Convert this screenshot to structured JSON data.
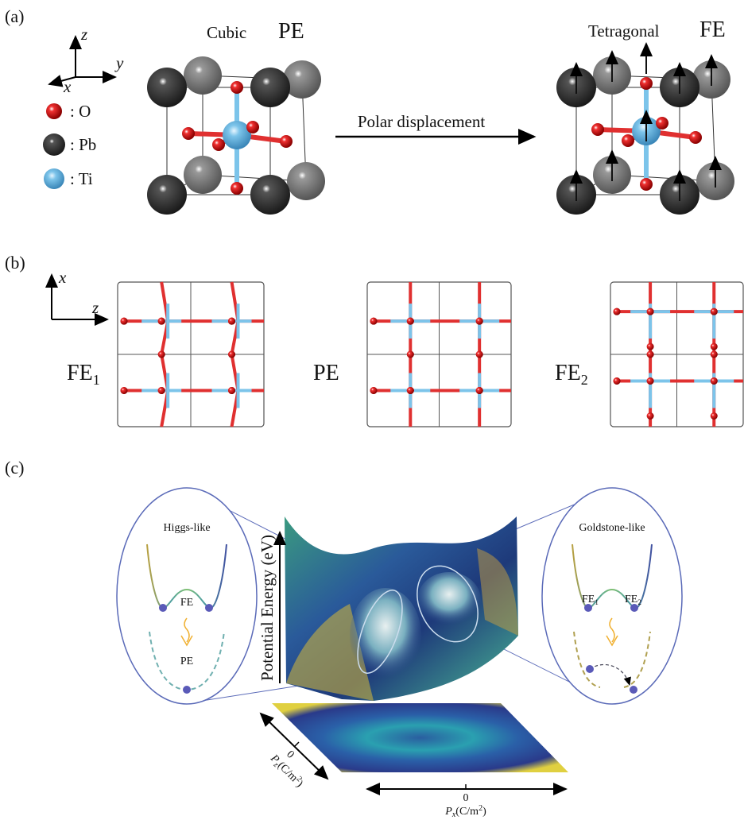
{
  "panel_a": {
    "label": "(a)",
    "axes": {
      "z": "z",
      "y": "y",
      "x": "x"
    },
    "legend": [
      ": O",
      ": Pb",
      ": Ti"
    ],
    "cubic": {
      "name": "Cubic",
      "phase": "PE"
    },
    "tetragonal": {
      "name": "Tetragonal",
      "phase": "FE"
    },
    "arrow_label": "Polar displacement"
  },
  "panel_b": {
    "label": "(b)",
    "axes": {
      "x": "x",
      "z": "z"
    },
    "structures": [
      {
        "name": "FE",
        "sub": "1"
      },
      {
        "name": "PE"
      },
      {
        "name": "FE",
        "sub": "2"
      }
    ]
  },
  "panel_c": {
    "label": "(c)",
    "left_inset": {
      "title": "Higgs-like",
      "top": "FE",
      "bottom": "PE"
    },
    "right_inset": {
      "title": "Goldstone-like",
      "left": "FE",
      "left_sub": "1",
      "right": "FE",
      "right_sub": "2"
    },
    "energy_axis": "Potential Energy (eV)",
    "pz_axis": {
      "zero": "0",
      "symbol": "P",
      "sub": "z",
      "unit": "(C/m",
      "sup": "2",
      "close": ")"
    },
    "px_axis": {
      "zero": "0",
      "symbol": "P",
      "sub": "x",
      "unit": "(C/m",
      "sup": "2",
      "close": ")"
    }
  }
}
